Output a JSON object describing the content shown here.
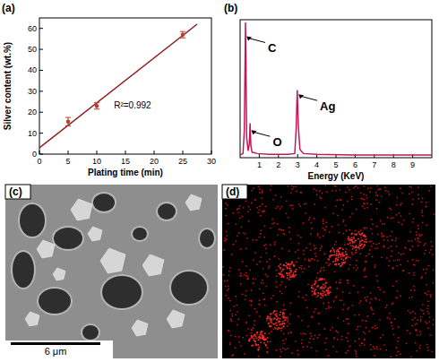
{
  "chart_data": [
    {
      "type": "line",
      "title": "(a)",
      "x_label": "Plating time (min)",
      "y_label": "Silver content (wt.%)",
      "xlim": [
        0,
        30
      ],
      "xticks": [
        0,
        5,
        10,
        15,
        20,
        25,
        30
      ],
      "ylim": [
        0,
        65
      ],
      "yticks": [
        0,
        10,
        20,
        30,
        40,
        50,
        60
      ],
      "grid": false,
      "series": [
        {
          "type": "line",
          "color": "#8b1a1a",
          "x": [
            0,
            27.5
          ],
          "values": [
            3,
            62
          ]
        },
        {
          "type": "scatter",
          "color": "#c0392b",
          "marker": "circle",
          "x": [
            5,
            10,
            25
          ],
          "values": [
            15.5,
            23,
            57
          ],
          "errors": [
            2,
            1.5,
            1.5
          ]
        }
      ],
      "annotations": [
        {
          "text": "R²=0.992",
          "x": 13,
          "y": 22
        }
      ]
    },
    {
      "type": "line",
      "title": "(b)",
      "x_label": "Energy (KeV)",
      "xlim": [
        0,
        10
      ],
      "xticks": [
        1,
        2,
        3,
        4,
        5,
        6,
        7,
        8,
        9
      ],
      "ylim": [
        0,
        100
      ],
      "tick_labels": "x",
      "grid": false,
      "series": [
        {
          "type": "line",
          "color": "#c2185b",
          "x": [
            0,
            0.15,
            0.22,
            0.26,
            0.28,
            0.3,
            0.34,
            0.42,
            0.48,
            0.52,
            0.56,
            0.62,
            0.9,
            1.5,
            2.5,
            2.85,
            2.92,
            2.98,
            3.04,
            3.12,
            3.3,
            4,
            6,
            8,
            10
          ],
          "values": [
            2,
            3,
            20,
            70,
            98,
            75,
            15,
            5,
            10,
            25,
            9,
            4,
            3,
            2.5,
            2.5,
            3,
            20,
            49,
            22,
            6,
            3,
            2.5,
            2,
            2,
            2
          ]
        }
      ],
      "annotations": [
        {
          "text": "C",
          "x": 0.33,
          "y": 88
        },
        {
          "text": "O",
          "x": 0.58,
          "y": 20
        },
        {
          "text": "Ag",
          "x": 3.04,
          "y": 46
        }
      ]
    }
  ],
  "images": [
    {
      "title": "(c)",
      "scale_bar": "6 μm"
    },
    {
      "title": "(d)"
    }
  ]
}
